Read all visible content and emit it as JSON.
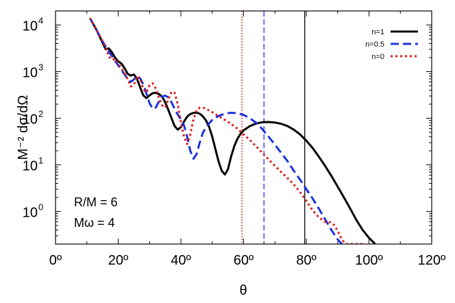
{
  "chart_data": {
    "type": "line",
    "title": "",
    "xlabel": "θ",
    "ylabel": "M⁻² dσ/dΩ",
    "xlim": [
      0,
      120
    ],
    "ylim": [
      0.2,
      20000
    ],
    "yscale": "log",
    "grid": false,
    "legend_position": "top-right",
    "x_ticks": [
      0,
      20,
      40,
      60,
      80,
      100,
      120
    ],
    "x_tick_labels": [
      "0º",
      "20º",
      "40º",
      "60º",
      "80º",
      "100º",
      "120º"
    ],
    "y_ticks": [
      1,
      10,
      100,
      1000,
      10000
    ],
    "y_tick_bases": [
      "10",
      "10",
      "10",
      "10",
      "10"
    ],
    "y_tick_exponents": [
      "0",
      "1",
      "2",
      "3",
      "4"
    ],
    "annotations": [
      "R/M = 6",
      "Mω = 4"
    ],
    "series": [
      {
        "name": "n=1",
        "color": "#000000",
        "dash": "solid",
        "points": [
          [
            11,
            14000
          ],
          [
            13,
            8000
          ],
          [
            15,
            4200
          ],
          [
            16,
            3000
          ],
          [
            17,
            3150
          ],
          [
            18,
            2600
          ],
          [
            19,
            2000
          ],
          [
            20,
            1650
          ],
          [
            21,
            1500
          ],
          [
            22,
            1200
          ],
          [
            23,
            900
          ],
          [
            24,
            820
          ],
          [
            25,
            870
          ],
          [
            26,
            700
          ],
          [
            27,
            460
          ],
          [
            28,
            310
          ],
          [
            29,
            270
          ],
          [
            30,
            310
          ],
          [
            31,
            345
          ],
          [
            32,
            350
          ],
          [
            33,
            330
          ],
          [
            34,
            290
          ],
          [
            35,
            220
          ],
          [
            36,
            150
          ],
          [
            37,
            100
          ],
          [
            38,
            68
          ],
          [
            39,
            57
          ],
          [
            40,
            64
          ],
          [
            41,
            85
          ],
          [
            42,
            108
          ],
          [
            43,
            123
          ],
          [
            44,
            130
          ],
          [
            45,
            132
          ],
          [
            46,
            125
          ],
          [
            47,
            110
          ],
          [
            48,
            90
          ],
          [
            49,
            65
          ],
          [
            50,
            40
          ],
          [
            51,
            22
          ],
          [
            52,
            12
          ],
          [
            53,
            7.5
          ],
          [
            54,
            6.2
          ],
          [
            55,
            8
          ],
          [
            56,
            15
          ],
          [
            57,
            25
          ],
          [
            58,
            36
          ],
          [
            59,
            46
          ],
          [
            60,
            55
          ],
          [
            62,
            68
          ],
          [
            64,
            77
          ],
          [
            66,
            82
          ],
          [
            68,
            83
          ],
          [
            70,
            81
          ],
          [
            72,
            76
          ],
          [
            74,
            68
          ],
          [
            76,
            57
          ],
          [
            78,
            45
          ],
          [
            80,
            33
          ],
          [
            82,
            23
          ],
          [
            84,
            15
          ],
          [
            86,
            9.5
          ],
          [
            88,
            5.8
          ],
          [
            90,
            3.4
          ],
          [
            92,
            2.0
          ],
          [
            94,
            1.15
          ],
          [
            96,
            0.65
          ],
          [
            98,
            0.4
          ],
          [
            100,
            0.27
          ],
          [
            102,
            0.2
          ]
        ]
      },
      {
        "name": "n=0.5",
        "color": "#1a33e0",
        "dash": "dashed",
        "points": [
          [
            11,
            14000
          ],
          [
            13,
            8000
          ],
          [
            15,
            4500
          ],
          [
            17,
            2700
          ],
          [
            19,
            1700
          ],
          [
            21,
            1100
          ],
          [
            23,
            700
          ],
          [
            24,
            600
          ],
          [
            25,
            680
          ],
          [
            26,
            790
          ],
          [
            27,
            720
          ],
          [
            28,
            530
          ],
          [
            29,
            340
          ],
          [
            30,
            210
          ],
          [
            31,
            160
          ],
          [
            32,
            170
          ],
          [
            33,
            230
          ],
          [
            34,
            290
          ],
          [
            35,
            305
          ],
          [
            36,
            280
          ],
          [
            37,
            220
          ],
          [
            38,
            160
          ],
          [
            39,
            120
          ],
          [
            40,
            95
          ],
          [
            41,
            70
          ],
          [
            42,
            40
          ],
          [
            43,
            20
          ],
          [
            44,
            13.5
          ],
          [
            45,
            17
          ],
          [
            46,
            30
          ],
          [
            47,
            48
          ],
          [
            48,
            65
          ],
          [
            50,
            92
          ],
          [
            52,
            112
          ],
          [
            54,
            125
          ],
          [
            56,
            131
          ],
          [
            58,
            128
          ],
          [
            60,
            118
          ],
          [
            62,
            100
          ],
          [
            64,
            80
          ],
          [
            66,
            58
          ],
          [
            68,
            40
          ],
          [
            70,
            27
          ],
          [
            72,
            18
          ],
          [
            74,
            12
          ],
          [
            76,
            7.5
          ],
          [
            78,
            4.8
          ],
          [
            80,
            3.0
          ],
          [
            82,
            1.9
          ],
          [
            84,
            1.15
          ],
          [
            86,
            0.68
          ],
          [
            88,
            0.4
          ],
          [
            90,
            0.25
          ],
          [
            92,
            0.18
          ]
        ]
      },
      {
        "name": "n=0",
        "color": "#e01a1a",
        "dash": "dotted",
        "points": [
          [
            11,
            14000
          ],
          [
            13,
            8000
          ],
          [
            15,
            4500
          ],
          [
            16,
            3300
          ],
          [
            17,
            2100
          ],
          [
            18,
            1800
          ],
          [
            19,
            1850
          ],
          [
            20,
            1500
          ],
          [
            21,
            1200
          ],
          [
            22,
            920
          ],
          [
            23,
            700
          ],
          [
            24,
            480
          ],
          [
            25,
            520
          ],
          [
            26,
            800
          ],
          [
            27,
            700
          ],
          [
            28,
            420
          ],
          [
            29,
            360
          ],
          [
            30,
            510
          ],
          [
            31,
            560
          ],
          [
            32,
            430
          ],
          [
            33,
            270
          ],
          [
            34,
            190
          ],
          [
            35,
            170
          ],
          [
            36,
            250
          ],
          [
            37,
            370
          ],
          [
            38,
            350
          ],
          [
            39,
            200
          ],
          [
            40,
            80
          ],
          [
            41,
            40
          ],
          [
            42,
            28
          ],
          [
            43,
            45
          ],
          [
            44,
            95
          ],
          [
            45,
            145
          ],
          [
            46,
            168
          ],
          [
            47,
            170
          ],
          [
            48,
            160
          ],
          [
            50,
            135
          ],
          [
            52,
            110
          ],
          [
            54,
            92
          ],
          [
            56,
            76
          ],
          [
            58,
            60
          ],
          [
            60,
            45
          ],
          [
            62,
            34
          ],
          [
            64,
            25
          ],
          [
            66,
            18
          ],
          [
            68,
            13
          ],
          [
            70,
            9.5
          ],
          [
            72,
            7
          ],
          [
            74,
            5.2
          ],
          [
            76,
            3.8
          ],
          [
            78,
            2.6
          ],
          [
            80,
            1.7
          ],
          [
            82,
            1.05
          ],
          [
            84,
            0.75
          ],
          [
            86,
            0.6
          ],
          [
            87,
            0.6
          ],
          [
            88,
            0.58
          ],
          [
            89,
            0.5
          ],
          [
            90,
            0.38
          ],
          [
            91,
            0.28
          ],
          [
            92,
            0.22
          ],
          [
            93,
            0.2
          ],
          [
            94,
            0.2
          ],
          [
            96,
            0.2
          ],
          [
            98,
            0.2
          ]
        ]
      }
    ],
    "vertical_lines": [
      {
        "x": 59.5,
        "color": "#e01a1a",
        "dash": "dotted"
      },
      {
        "x": 66.5,
        "color": "#1a33e0",
        "dash": "dashed"
      },
      {
        "x": 79.5,
        "color": "#000000",
        "dash": "solid"
      }
    ]
  }
}
